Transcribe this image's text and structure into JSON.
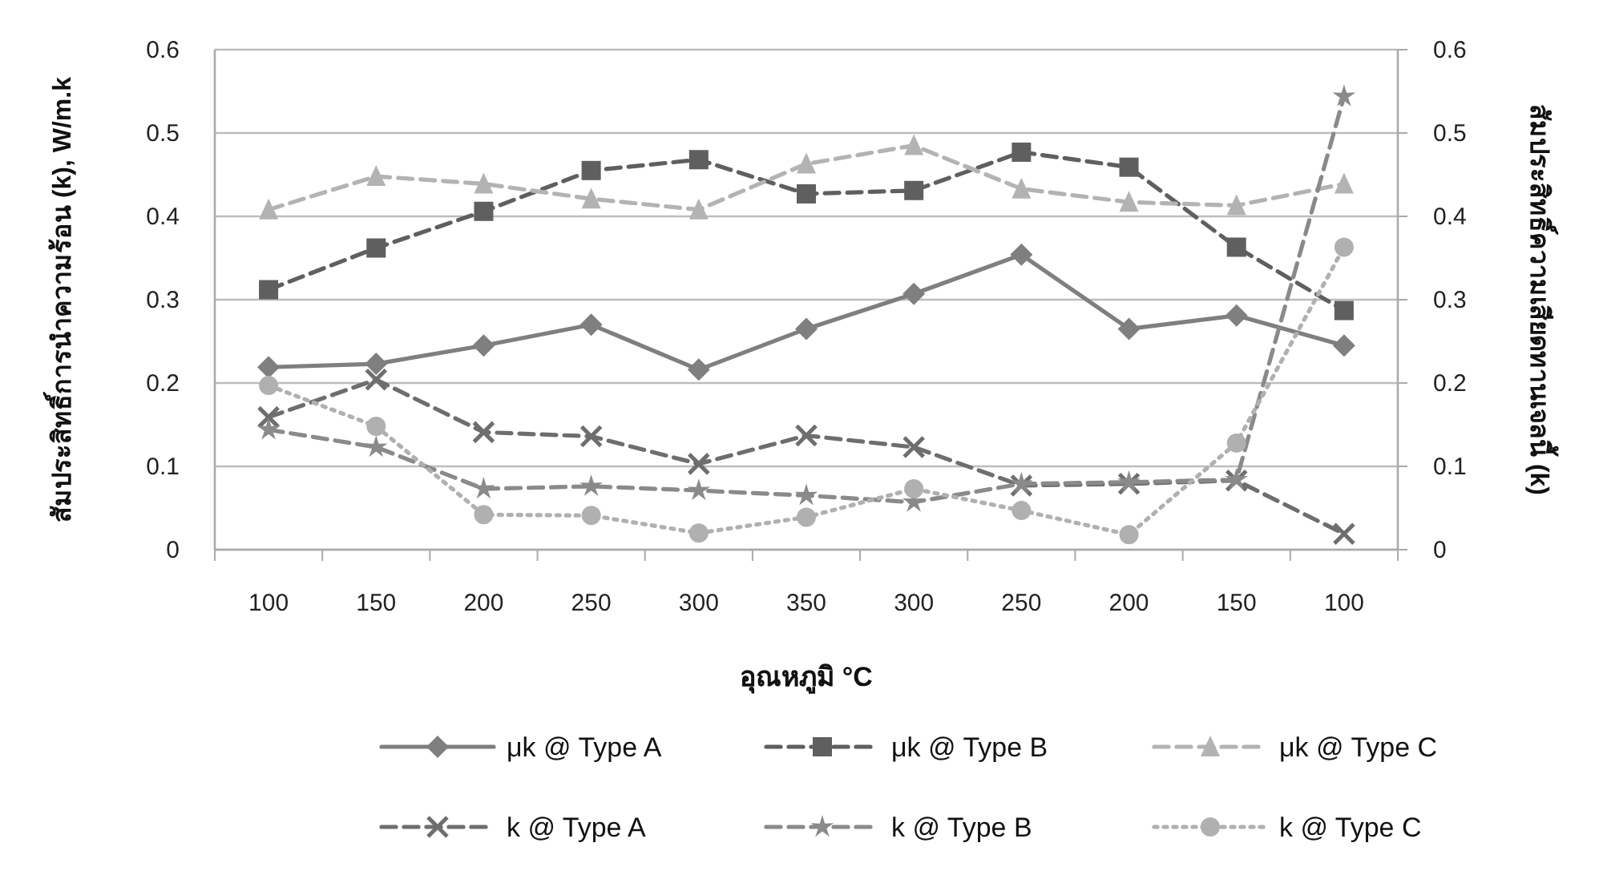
{
  "chart_data": {
    "type": "line",
    "xlabel": "อุณหภูมิ °C",
    "ylabel": "สัมประสิทธิ์การนำความร้อน (k), W/m.k",
    "y2label": "สัมประสิทธิ์ความเสียดทานเจลนี้ (k)",
    "categories": [
      "100",
      "150",
      "200",
      "250",
      "300",
      "350",
      "300",
      "250",
      "200",
      "150",
      "100"
    ],
    "series": [
      {
        "name": "μk @ Type A",
        "color": "#7f7f7f",
        "marker": "diamond",
        "line_style": "solid",
        "values": [
          0.219,
          0.223,
          0.245,
          0.27,
          0.216,
          0.265,
          0.307,
          0.354,
          0.265,
          0.281,
          0.245
        ]
      },
      {
        "name": "μk @ Type B",
        "color": "#5f5f5f",
        "marker": "square",
        "line_style": "dashed",
        "values": [
          0.312,
          0.362,
          0.406,
          0.455,
          0.468,
          0.427,
          0.431,
          0.477,
          0.459,
          0.363,
          0.287
        ]
      },
      {
        "name": "μk @ Type C",
        "color": "#b3b3b3",
        "marker": "triangle",
        "line_style": "dashed",
        "values": [
          0.408,
          0.448,
          0.439,
          0.421,
          0.408,
          0.463,
          0.485,
          0.433,
          0.417,
          0.413,
          0.439
        ]
      },
      {
        "name": "k @ Type A",
        "color": "#6e6e6e",
        "marker": "cross",
        "line_style": "dashed",
        "axis": "y2",
        "values": [
          0.159,
          0.204,
          0.141,
          0.136,
          0.103,
          0.137,
          0.123,
          0.077,
          0.079,
          0.083,
          0.019
        ]
      },
      {
        "name": "k @ Type B",
        "color": "#8a8a8a",
        "marker": "star",
        "line_style": "dashed",
        "axis": "y2",
        "values": [
          0.144,
          0.123,
          0.073,
          0.076,
          0.071,
          0.065,
          0.057,
          0.079,
          0.081,
          0.084,
          0.544
        ]
      },
      {
        "name": "k @ Type C",
        "color": "#b0b0b0",
        "marker": "circle",
        "line_style": "dotted",
        "axis": "y2",
        "values": [
          0.197,
          0.148,
          0.042,
          0.041,
          0.02,
          0.039,
          0.073,
          0.047,
          0.018,
          0.128,
          0.363
        ]
      }
    ],
    "ylim": [
      0,
      0.6
    ],
    "yticks": [
      0,
      0.1,
      0.2,
      0.3,
      0.4,
      0.5,
      0.6
    ],
    "y2lim": [
      0,
      0.6
    ],
    "y2ticks": [
      0,
      0.1,
      0.2,
      0.3,
      0.4,
      0.5,
      0.6
    ],
    "grid": "y",
    "legend": "bottom"
  }
}
